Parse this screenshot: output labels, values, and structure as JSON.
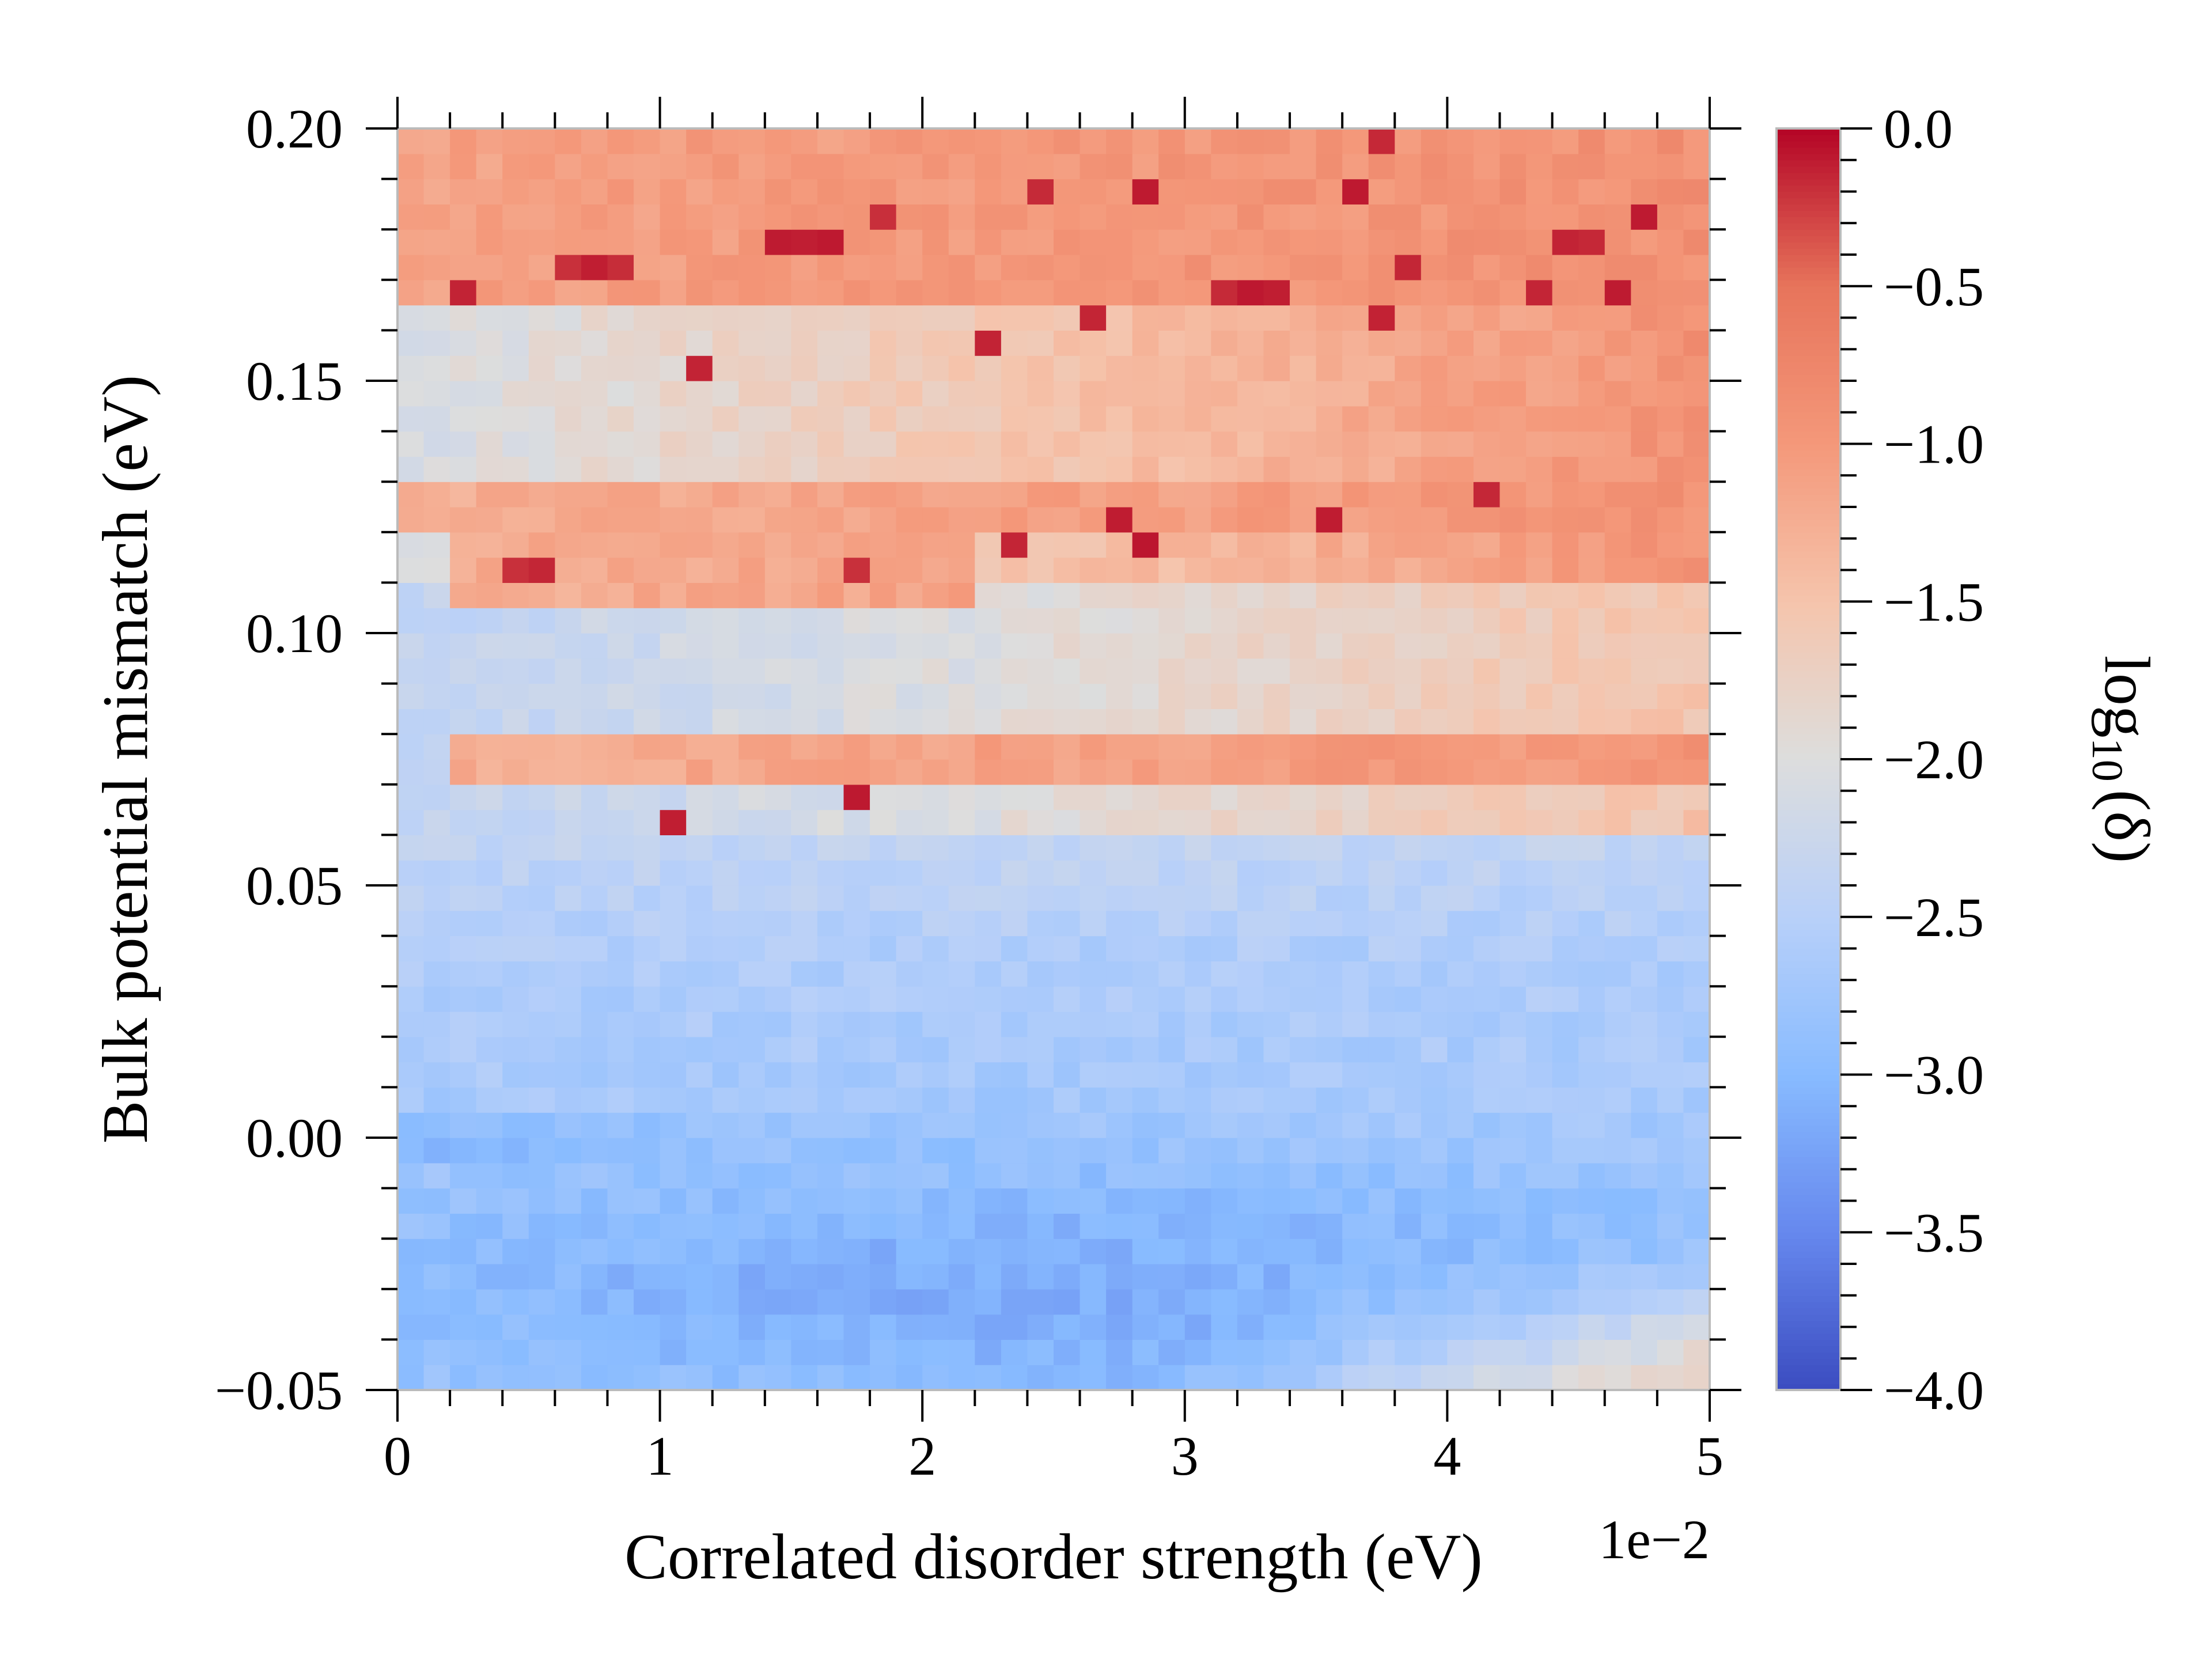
{
  "chart_data": {
    "type": "heatmap",
    "xlabel": "Correlated disorder strength (eV)",
    "x_offset_text": "1e−2",
    "ylabel": "Bulk potential mismatch (eV)",
    "colorbar_label_base": "log",
    "colorbar_label_sub": "10",
    "colorbar_label_arg": "(δ)",
    "xlim": [
      0,
      0.05
    ],
    "ylim": [
      -0.05,
      0.2
    ],
    "x_tick_labels": [
      "0",
      "1",
      "2",
      "3",
      "4",
      "5"
    ],
    "y_tick_labels": [
      "−0.05",
      "0.00",
      "0.05",
      "0.10",
      "0.15",
      "0.20"
    ],
    "colorbar_range": [
      -4.0,
      0.0
    ],
    "colorbar_tick_labels": [
      "−4.0",
      "−3.5",
      "−3.0",
      "−2.5",
      "−2.0",
      "−1.5",
      "−1.0",
      "−0.5",
      "0.0"
    ],
    "colormap": "coolwarm",
    "colormap_stops": [
      "#3b4cc0",
      "#6688ee",
      "#88bbff",
      "#b8d0f9",
      "#dddddd",
      "#f5c4ac",
      "#f4987a",
      "#e7745b",
      "#b40426"
    ],
    "grid": false,
    "n_x": 50,
    "n_y": 50,
    "description_of_values": "log10(delta) over disorder strength (x) and potential mismatch (y); low (blue, about -2.5 to -3.5) for mismatch below ~0.06 eV, minimum near (0, 0.00) at about -3.8; bands of higher values (red, -1.5 to 0) near 0.07-0.08 eV and above ~0.11 eV, saturating near 0 for 0.17-0.20 eV with scattered near-zero cells",
    "feature_bands": [
      {
        "y_eV": 0.0745,
        "x_start": 0.002,
        "x_end": 0.05
      },
      {
        "y_eV": 0.124,
        "x_start": 0.0,
        "x_end": 0.05
      },
      {
        "y_eV": 0.112,
        "x_start": 0.002,
        "x_end": 0.022
      },
      {
        "y_eV": 0.18,
        "x_start": 0.006,
        "x_end": 0.05
      },
      {
        "y_eV": 0.19,
        "x_start": 0.0,
        "x_end": 0.05
      }
    ],
    "hot_cells": [
      [
        0.0025,
        0.1675
      ],
      [
        0.0045,
        0.1125
      ],
      [
        0.0055,
        0.1125
      ],
      [
        0.0065,
        0.1725
      ],
      [
        0.0075,
        0.1725
      ],
      [
        0.0085,
        0.1725
      ],
      [
        0.0105,
        0.0625
      ],
      [
        0.0115,
        0.1525
      ],
      [
        0.0145,
        0.1775
      ],
      [
        0.0155,
        0.1775
      ],
      [
        0.0165,
        0.1775
      ],
      [
        0.0175,
        0.1125
      ],
      [
        0.0175,
        0.0675
      ],
      [
        0.0185,
        0.1825
      ],
      [
        0.0225,
        0.1575
      ],
      [
        0.0235,
        0.1175
      ],
      [
        0.0245,
        0.1875
      ],
      [
        0.0265,
        0.1625
      ],
      [
        0.0275,
        0.1225
      ],
      [
        0.0285,
        0.1875
      ],
      [
        0.0285,
        0.1175
      ],
      [
        0.0315,
        0.1675
      ],
      [
        0.0325,
        0.1675
      ],
      [
        0.0335,
        0.1675
      ],
      [
        0.0355,
        0.1225
      ],
      [
        0.0365,
        0.1875
      ],
      [
        0.0375,
        0.1975
      ],
      [
        0.0375,
        0.1625
      ],
      [
        0.0385,
        0.1725
      ],
      [
        0.0415,
        0.1275
      ],
      [
        0.0435,
        0.1675
      ],
      [
        0.0445,
        0.1775
      ],
      [
        0.0455,
        0.1775
      ],
      [
        0.0465,
        0.1675
      ],
      [
        0.0475,
        0.1825
      ]
    ]
  }
}
